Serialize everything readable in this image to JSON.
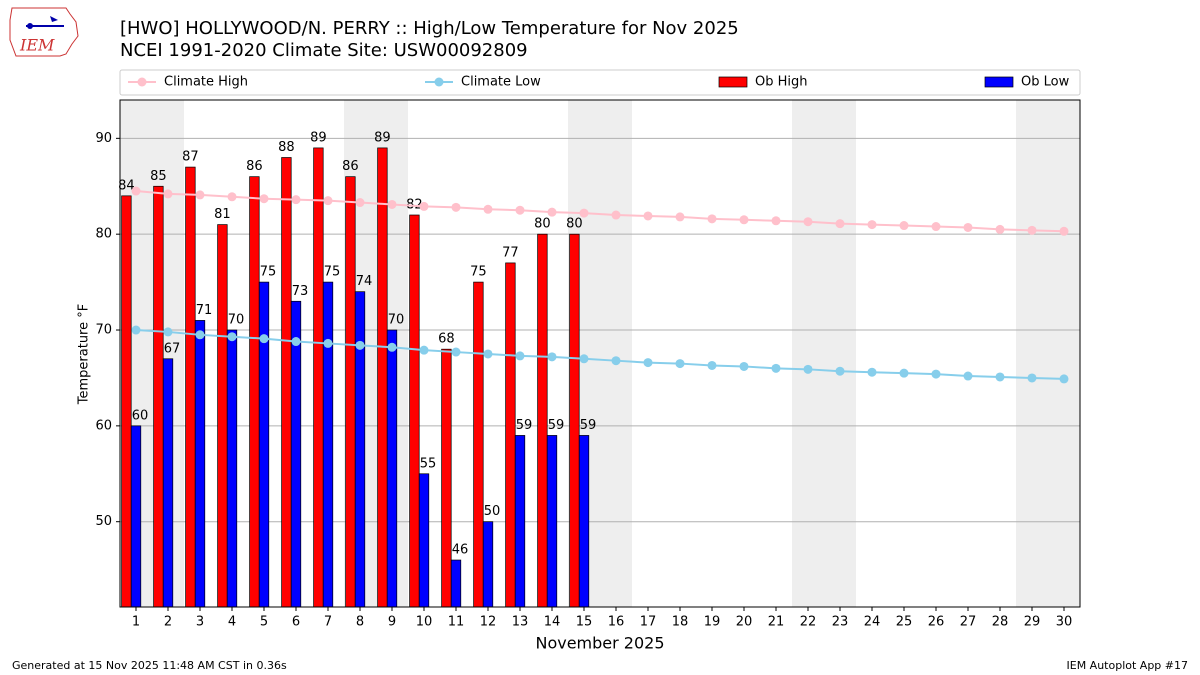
{
  "logo_text": "IEM",
  "chart_data": {
    "type": "bar",
    "title": "[HWO] HOLLYWOOD/N. PERRY :: High/Low Temperature for Nov 2025",
    "subtitle": "NCEI 1991-2020 Climate Site: USW00092809",
    "y_label": "Temperature °F",
    "x_label": "November 2025",
    "x": [
      1,
      2,
      3,
      4,
      5,
      6,
      7,
      8,
      9,
      10,
      11,
      12,
      13,
      14,
      15,
      16,
      17,
      18,
      19,
      20,
      21,
      22,
      23,
      24,
      25,
      26,
      27,
      28,
      29,
      30
    ],
    "xlim": [
      0.5,
      30.5
    ],
    "ylim": [
      41.1,
      94
    ],
    "yticks": [
      50,
      60,
      70,
      80,
      90
    ],
    "grid": true,
    "legend": "top",
    "series": [
      {
        "name": "Climate High",
        "type": "line",
        "color": "#ffc0cb",
        "values": [
          84.5,
          84.2,
          84.1,
          83.9,
          83.7,
          83.6,
          83.5,
          83.3,
          83.1,
          82.9,
          82.8,
          82.6,
          82.5,
          82.3,
          82.2,
          82.0,
          81.9,
          81.8,
          81.6,
          81.5,
          81.4,
          81.3,
          81.1,
          81.0,
          80.9,
          80.8,
          80.7,
          80.5,
          80.4,
          80.3
        ]
      },
      {
        "name": "Climate Low",
        "type": "line",
        "color": "#87ceeb",
        "values": [
          70.0,
          69.8,
          69.5,
          69.3,
          69.1,
          68.8,
          68.6,
          68.4,
          68.2,
          67.9,
          67.7,
          67.5,
          67.3,
          67.2,
          67.0,
          66.8,
          66.6,
          66.5,
          66.3,
          66.2,
          66.0,
          65.9,
          65.7,
          65.6,
          65.5,
          65.4,
          65.2,
          65.1,
          65.0,
          64.9
        ]
      },
      {
        "name": "Ob High",
        "type": "bar",
        "color": "#ff0000",
        "values": [
          84,
          85,
          87,
          81,
          86,
          88,
          89,
          86,
          89,
          82,
          68,
          75,
          77,
          80,
          80,
          null,
          null,
          null,
          null,
          null,
          null,
          null,
          null,
          null,
          null,
          null,
          null,
          null,
          null,
          null
        ]
      },
      {
        "name": "Ob Low",
        "type": "bar",
        "color": "#0000ff",
        "values": [
          60,
          67,
          71,
          70,
          75,
          73,
          75,
          74,
          70,
          55,
          46,
          50,
          59,
          59,
          59,
          null,
          null,
          null,
          null,
          null,
          null,
          null,
          null,
          null,
          null,
          null,
          null,
          null,
          null,
          null
        ]
      }
    ],
    "footer_left": "Generated at 15 Nov 2025 11:48 AM CST in 0.36s",
    "footer_right": "IEM Autoplot App #17"
  }
}
